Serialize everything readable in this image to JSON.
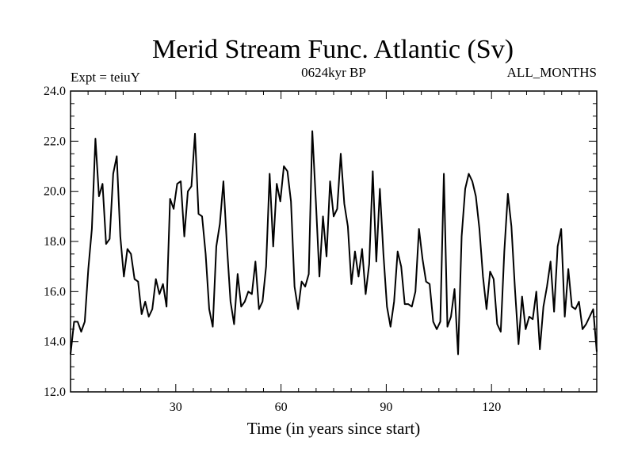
{
  "chart_data": {
    "type": "line",
    "title": "Merid Stream Func. Atlantic (Sv)",
    "subtitle": "0624kyr BP",
    "annotation_left": "Expt = teiuY",
    "annotation_right": "ALL_MONTHS",
    "xlabel": "Time (in years since start)",
    "ylabel": "",
    "xlim": [
      0,
      150
    ],
    "ylim": [
      12,
      24
    ],
    "x_ticks": [
      30,
      60,
      90,
      120
    ],
    "y_ticks": [
      12,
      14,
      16,
      18,
      20,
      22,
      24
    ],
    "y_tick_labels": [
      "12.0",
      "14.0",
      "16.0",
      "18.0",
      "20.0",
      "22.0",
      "24.0"
    ],
    "grid": false,
    "series": [
      {
        "color": "#000000",
        "values": [
          13.5,
          14.8,
          14.8,
          14.4,
          14.8,
          16.9,
          18.5,
          22.1,
          19.8,
          20.3,
          17.9,
          18.1,
          20.7,
          21.4,
          18.2,
          16.6,
          17.7,
          17.5,
          16.5,
          16.4,
          15.1,
          15.6,
          15.0,
          15.3,
          16.5,
          15.9,
          16.3,
          15.4,
          19.7,
          19.3,
          20.3,
          20.4,
          18.2,
          20.0,
          20.2,
          22.3,
          19.1,
          19.0,
          17.5,
          15.3,
          14.6,
          17.8,
          18.7,
          20.4,
          17.8,
          15.6,
          14.7,
          16.7,
          15.4,
          15.6,
          16.0,
          15.9,
          17.2,
          15.3,
          15.6,
          17.0,
          20.7,
          17.8,
          20.3,
          19.6,
          21.0,
          20.8,
          19.6,
          16.2,
          15.3,
          16.4,
          16.2,
          16.7,
          22.4,
          19.6,
          16.6,
          19.0,
          17.4,
          20.4,
          19.0,
          19.3,
          21.5,
          19.5,
          18.6,
          16.3,
          17.6,
          16.6,
          17.7,
          15.9,
          17.1,
          20.8,
          17.2,
          20.1,
          17.5,
          15.4,
          14.6,
          15.6,
          17.6,
          17.0,
          15.5,
          15.5,
          15.4,
          16.0,
          18.5,
          17.3,
          16.4,
          16.3,
          14.8,
          14.5,
          14.8,
          20.7,
          14.6,
          15.0,
          16.1,
          13.5,
          18.2,
          20.1,
          20.7,
          20.4,
          19.8,
          18.5,
          16.6,
          15.3,
          16.8,
          16.5,
          14.7,
          14.4,
          17.6,
          19.9,
          18.6,
          16.1,
          13.9,
          15.8,
          14.5,
          15.0,
          14.9,
          16.0,
          13.7,
          15.4,
          16.2,
          17.2,
          15.2,
          17.8,
          18.5,
          15.0,
          16.9,
          15.4,
          15.3,
          15.6,
          14.5,
          14.7,
          15.0,
          15.3,
          13.6
        ]
      }
    ]
  }
}
